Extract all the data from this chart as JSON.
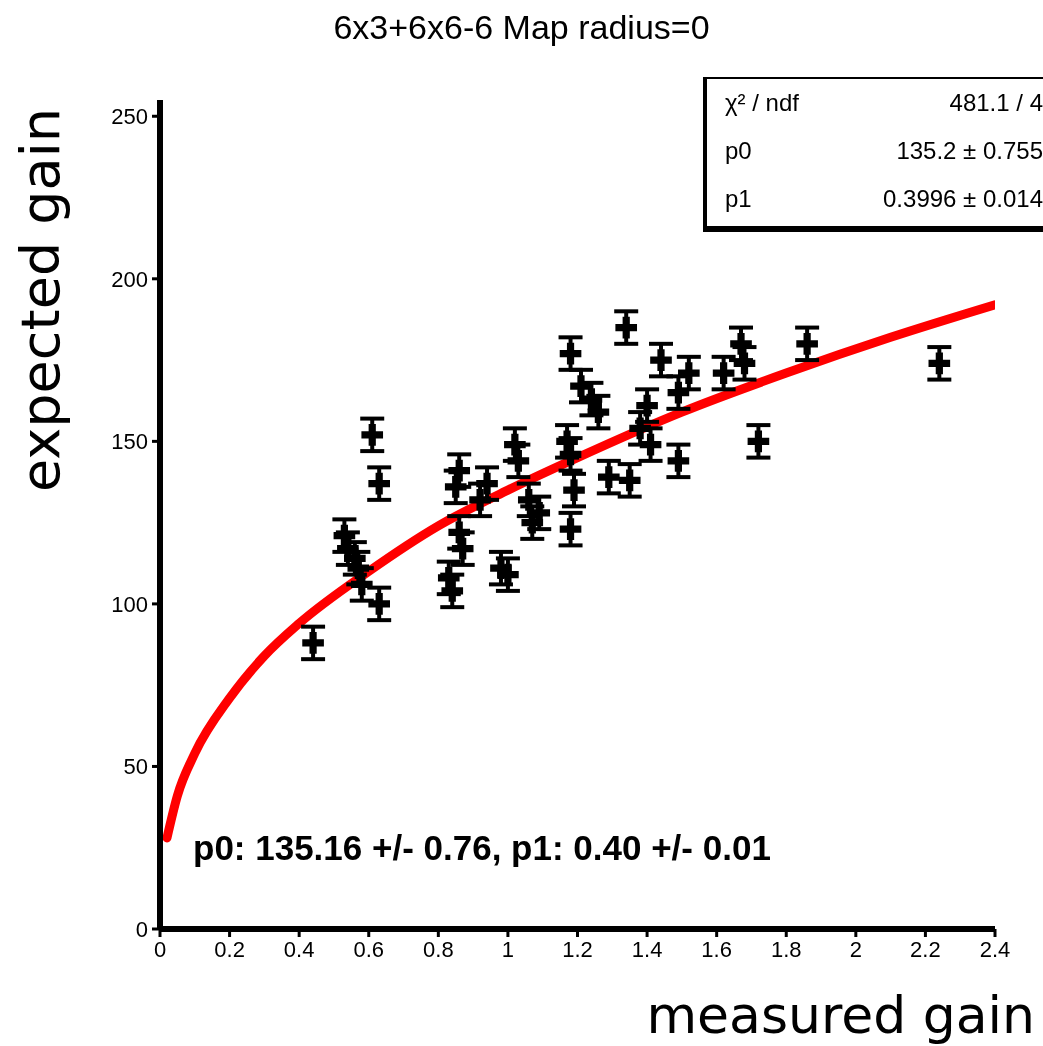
{
  "chart_data": {
    "type": "scatter",
    "title": "6x3+6x6-6 Map radius=0",
    "xlabel": "measured gain",
    "ylabel": "expected gain",
    "xlim": [
      0,
      2.4
    ],
    "xticks": [
      0,
      0.2,
      0.4,
      0.6,
      0.8,
      1,
      1.2,
      1.4,
      1.6,
      1.8,
      2,
      2.2,
      2.4
    ],
    "ylim": [
      0,
      255
    ],
    "yticks": [
      0,
      50,
      100,
      150,
      200,
      250
    ],
    "grid": false,
    "legend": false,
    "series": [
      {
        "color": "#000000",
        "marker": "cross",
        "x": [
          0.44,
          0.53,
          0.54,
          0.56,
          0.57,
          0.58,
          0.61,
          0.63,
          0.63,
          0.83,
          0.84,
          0.85,
          0.86,
          0.86,
          0.87,
          0.92,
          0.94,
          0.98,
          1.0,
          1.02,
          1.03,
          1.06,
          1.07,
          1.09,
          1.18,
          1.17,
          1.18,
          1.19,
          1.18,
          1.21,
          1.24,
          1.26,
          1.29,
          1.35,
          1.34,
          1.38,
          1.4,
          1.41,
          1.44,
          1.49,
          1.49,
          1.52,
          1.62,
          1.67,
          1.68,
          1.72,
          1.86,
          2.24
        ],
        "values": [
          88,
          121,
          117,
          114,
          111,
          106,
          152,
          137,
          100,
          108,
          104,
          136,
          141,
          122,
          117,
          132,
          137,
          111,
          109,
          149,
          144,
          132,
          125,
          128,
          177,
          150,
          146,
          135,
          123,
          167,
          163,
          159,
          139,
          138,
          185,
          154,
          161,
          149,
          175,
          144,
          165,
          171,
          171,
          180,
          174,
          150,
          180,
          174
        ],
        "errors": [
          5,
          5,
          5,
          5,
          5,
          5,
          5,
          5,
          5,
          5,
          5,
          5,
          5,
          5,
          5,
          5,
          5,
          5,
          5,
          5,
          5,
          5,
          5,
          5,
          5,
          5,
          5,
          5,
          5,
          5,
          5,
          5,
          5,
          5,
          5,
          5,
          5,
          5,
          5,
          5,
          5,
          5,
          5,
          5,
          5,
          5,
          5,
          5
        ]
      },
      {
        "type": "line",
        "color": "#ff0000",
        "x": [
          0.02,
          0.05,
          0.1,
          0.2,
          0.3,
          0.4,
          0.6,
          0.8,
          1.0,
          1.2,
          1.5,
          1.8,
          2.1,
          2.4
        ],
        "values": [
          28,
          41,
          54,
          71,
          84,
          94,
          110,
          124,
          135,
          145,
          159,
          171,
          182,
          192
        ]
      }
    ],
    "annotations": [
      "χ² / ndf",
      "481.1 / 4",
      "p0",
      "135.2 ± 0.755",
      "p1",
      "0.3996 ± 0.014",
      "p0: 135.16 +/- 0.76, p1: 0.40 +/- 0.01"
    ]
  }
}
